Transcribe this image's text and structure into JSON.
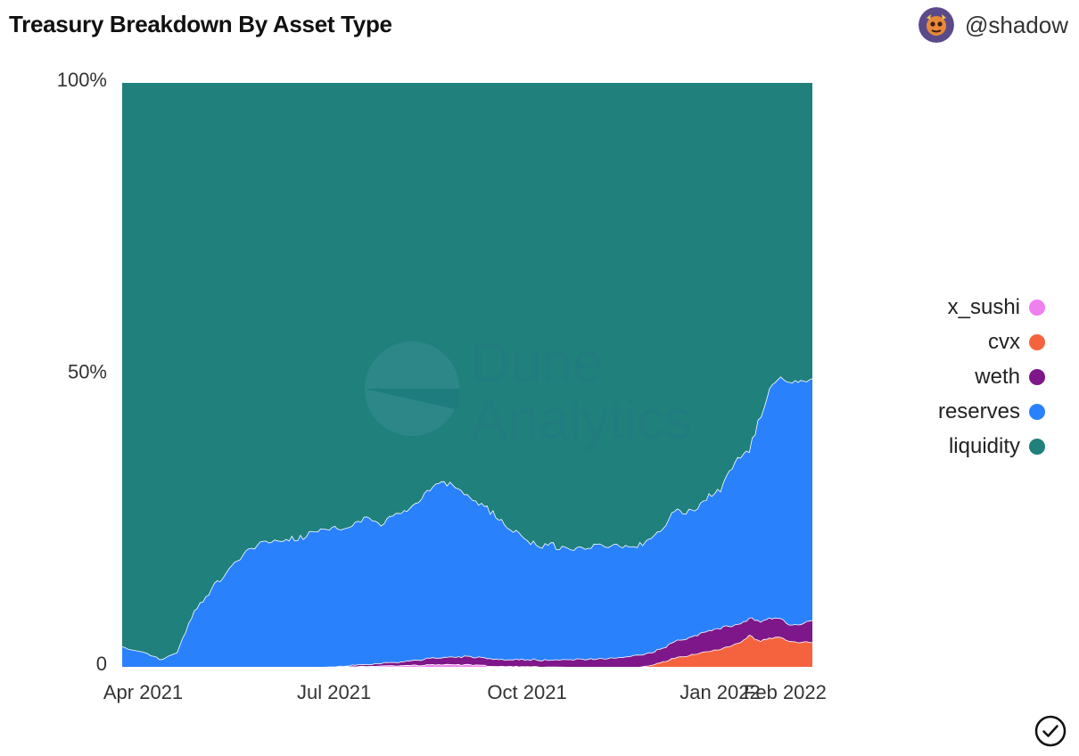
{
  "header": {
    "title": "Treasury Breakdown By Asset Type",
    "author": "@shadow"
  },
  "watermark": {
    "line1": "Dune",
    "line2": "Analytics"
  },
  "colors": {
    "liquidity": "#1f807c",
    "reserves": "#2a81fc",
    "weth": "#7e1789",
    "cvx": "#f5633e",
    "x_sushi": "#f07ff0"
  },
  "chart_data": {
    "type": "area",
    "stacking": "percent",
    "title": "Treasury Breakdown By Asset Type",
    "xlabel": "",
    "ylabel": "",
    "x_ticks": [
      "Apr 2021",
      "Jul 2021",
      "Oct 2021",
      "Jan 2022",
      "Feb 2022"
    ],
    "y_ticks": [
      "0",
      "50%",
      "100%"
    ],
    "ylim": [
      0,
      100
    ],
    "xlim": [
      "2021-03-22",
      "2022-02-14"
    ],
    "legend_position": "right",
    "series": [
      {
        "name": "x_sushi",
        "color": "#f07ff0",
        "points": [
          [
            "2021-03-22",
            0
          ],
          [
            "2021-06-27",
            0
          ],
          [
            "2021-07-27",
            0.2
          ],
          [
            "2021-08-17",
            0.4
          ],
          [
            "2021-09-01",
            0.4
          ],
          [
            "2021-09-15",
            0.2
          ],
          [
            "2021-10-01",
            0.1
          ],
          [
            "2021-10-20",
            0
          ],
          [
            "2022-02-14",
            0
          ]
        ]
      },
      {
        "name": "cvx",
        "color": "#f5633e",
        "points": [
          [
            "2021-03-22",
            0
          ],
          [
            "2021-11-24",
            0
          ],
          [
            "2021-12-01",
            0.5
          ],
          [
            "2021-12-10",
            1.5
          ],
          [
            "2021-12-20",
            2.2
          ],
          [
            "2022-01-01",
            3.0
          ],
          [
            "2022-01-10",
            4.2
          ],
          [
            "2022-01-15",
            5.5
          ],
          [
            "2022-01-20",
            4.5
          ],
          [
            "2022-01-28",
            5.2
          ],
          [
            "2022-02-05",
            4.2
          ],
          [
            "2022-02-14",
            4.2
          ]
        ]
      },
      {
        "name": "weth",
        "color": "#7e1789",
        "points": [
          [
            "2021-03-22",
            0
          ],
          [
            "2021-06-27",
            0
          ],
          [
            "2021-07-15",
            0.3
          ],
          [
            "2021-08-01",
            0.6
          ],
          [
            "2021-08-15",
            1.1
          ],
          [
            "2021-09-01",
            1.4
          ],
          [
            "2021-09-15",
            1.2
          ],
          [
            "2021-10-15",
            1.2
          ],
          [
            "2021-11-15",
            1.6
          ],
          [
            "2021-11-24",
            2.1
          ],
          [
            "2021-12-01",
            2.2
          ],
          [
            "2021-12-10",
            2.8
          ],
          [
            "2021-12-20",
            3.2
          ],
          [
            "2022-01-01",
            3.7
          ],
          [
            "2022-01-10",
            3.2
          ],
          [
            "2022-01-15",
            3.0
          ],
          [
            "2022-01-20",
            3.3
          ],
          [
            "2022-01-28",
            3.4
          ],
          [
            "2022-02-05",
            2.8
          ],
          [
            "2022-02-14",
            3.8
          ]
        ]
      },
      {
        "name": "reserves",
        "color": "#2a81fc",
        "points": [
          [
            "2021-03-22",
            3.5
          ],
          [
            "2021-04-01",
            2.5
          ],
          [
            "2021-04-10",
            1.2
          ],
          [
            "2021-04-17",
            2.5
          ],
          [
            "2021-04-25",
            9.5
          ],
          [
            "2021-05-05",
            14
          ],
          [
            "2021-05-15",
            18
          ],
          [
            "2021-05-25",
            21
          ],
          [
            "2021-06-05",
            22
          ],
          [
            "2021-06-15",
            22
          ],
          [
            "2021-06-25",
            24
          ],
          [
            "2021-07-05",
            23.5
          ],
          [
            "2021-07-15",
            25
          ],
          [
            "2021-07-25",
            24
          ],
          [
            "2021-08-05",
            26
          ],
          [
            "2021-08-15",
            29
          ],
          [
            "2021-08-25",
            30
          ],
          [
            "2021-09-05",
            27
          ],
          [
            "2021-09-15",
            25
          ],
          [
            "2021-09-25",
            22
          ],
          [
            "2021-10-05",
            19.5
          ],
          [
            "2021-10-15",
            19.5
          ],
          [
            "2021-10-25",
            18.5
          ],
          [
            "2021-11-05",
            20
          ],
          [
            "2021-11-15",
            19
          ],
          [
            "2021-11-24",
            19
          ],
          [
            "2021-12-01",
            20
          ],
          [
            "2021-12-10",
            22
          ],
          [
            "2021-12-20",
            21.5
          ],
          [
            "2022-01-01",
            24
          ],
          [
            "2022-01-10",
            28.5
          ],
          [
            "2022-01-15",
            28.8
          ],
          [
            "2022-01-20",
            35
          ],
          [
            "2022-01-25",
            40
          ],
          [
            "2022-02-01",
            41.5
          ],
          [
            "2022-02-07",
            41.3
          ],
          [
            "2022-02-14",
            41.4
          ]
        ]
      },
      {
        "name": "liquidity",
        "color": "#1f807c",
        "points": [
          [
            "2021-03-22",
            96.5
          ],
          [
            "2021-06-27",
            75
          ],
          [
            "2022-02-14",
            50.6
          ]
        ]
      }
    ]
  },
  "legend": [
    {
      "label": "x_sushi",
      "color": "#f07ff0"
    },
    {
      "label": "cvx",
      "color": "#f5633e"
    },
    {
      "label": "weth",
      "color": "#7e1789"
    },
    {
      "label": "reserves",
      "color": "#2a81fc"
    },
    {
      "label": "liquidity",
      "color": "#1f807c"
    }
  ],
  "icons": {
    "avatar": "avatar-icon",
    "confirm": "check-circle-icon"
  }
}
